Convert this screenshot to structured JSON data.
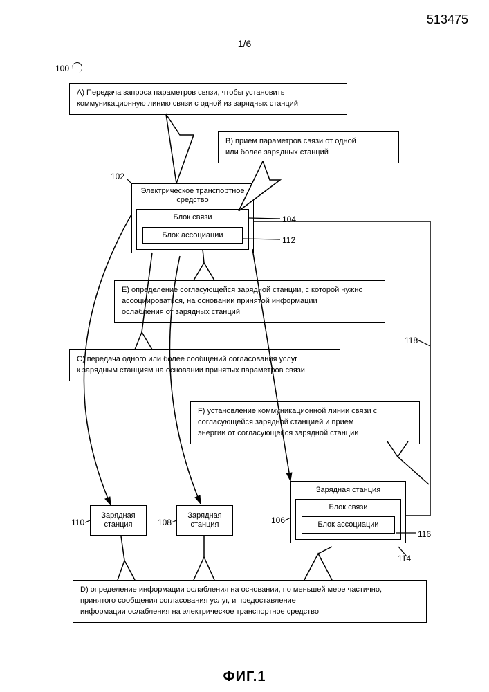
{
  "doc_number": "513475",
  "page_indicator": "1/6",
  "figure_label": "ФИГ.1",
  "ref": {
    "r100": "100",
    "r102": "102",
    "r104": "104",
    "r112": "112",
    "r118": "118",
    "r110": "110",
    "r108": "108",
    "r106": "106",
    "r114": "114",
    "r116": "116"
  },
  "vehicle": {
    "title": "Электрическое транспортное\nсредство",
    "comm": "Блок связи",
    "assoc": "Блок ассоциации"
  },
  "station_main": {
    "title": "Зарядная станция",
    "comm": "Блок связи",
    "assoc": "Блок ассоциации"
  },
  "station_left": "Зарядная\nстанция",
  "station_mid": "Зарядная\nстанция",
  "callouts": {
    "A": "A) Передача запроса параметров связи, чтобы установить\n    коммуникационную линию связи с одной из зарядных станций",
    "B": "B) прием параметров связи от одной\n    или более зарядных станций",
    "C": "C) передача одного или более сообщений согласования услуг\n    к зарядным станциям на основании принятых параметров связи",
    "D": "D) определение информации ослабления на основании, по меньшей мере частично,\n    принятого сообщения согласования услуг, и предоставление\n    информации ослабления на электрическое транспортное средство",
    "E": "E) определение согласующейся зарядной станции, с которой нужно\n    ассоциироваться, на основании принятой информации\n    ослабления от зарядных станций",
    "F": "F) установление коммуникационной линии связи с\n    согласующейся зарядной станцией и прием\n    энергии от согласующейся зарядной станции"
  },
  "style": {
    "line_color": "#000000",
    "line_width": 1.5,
    "bg": "#ffffff"
  }
}
